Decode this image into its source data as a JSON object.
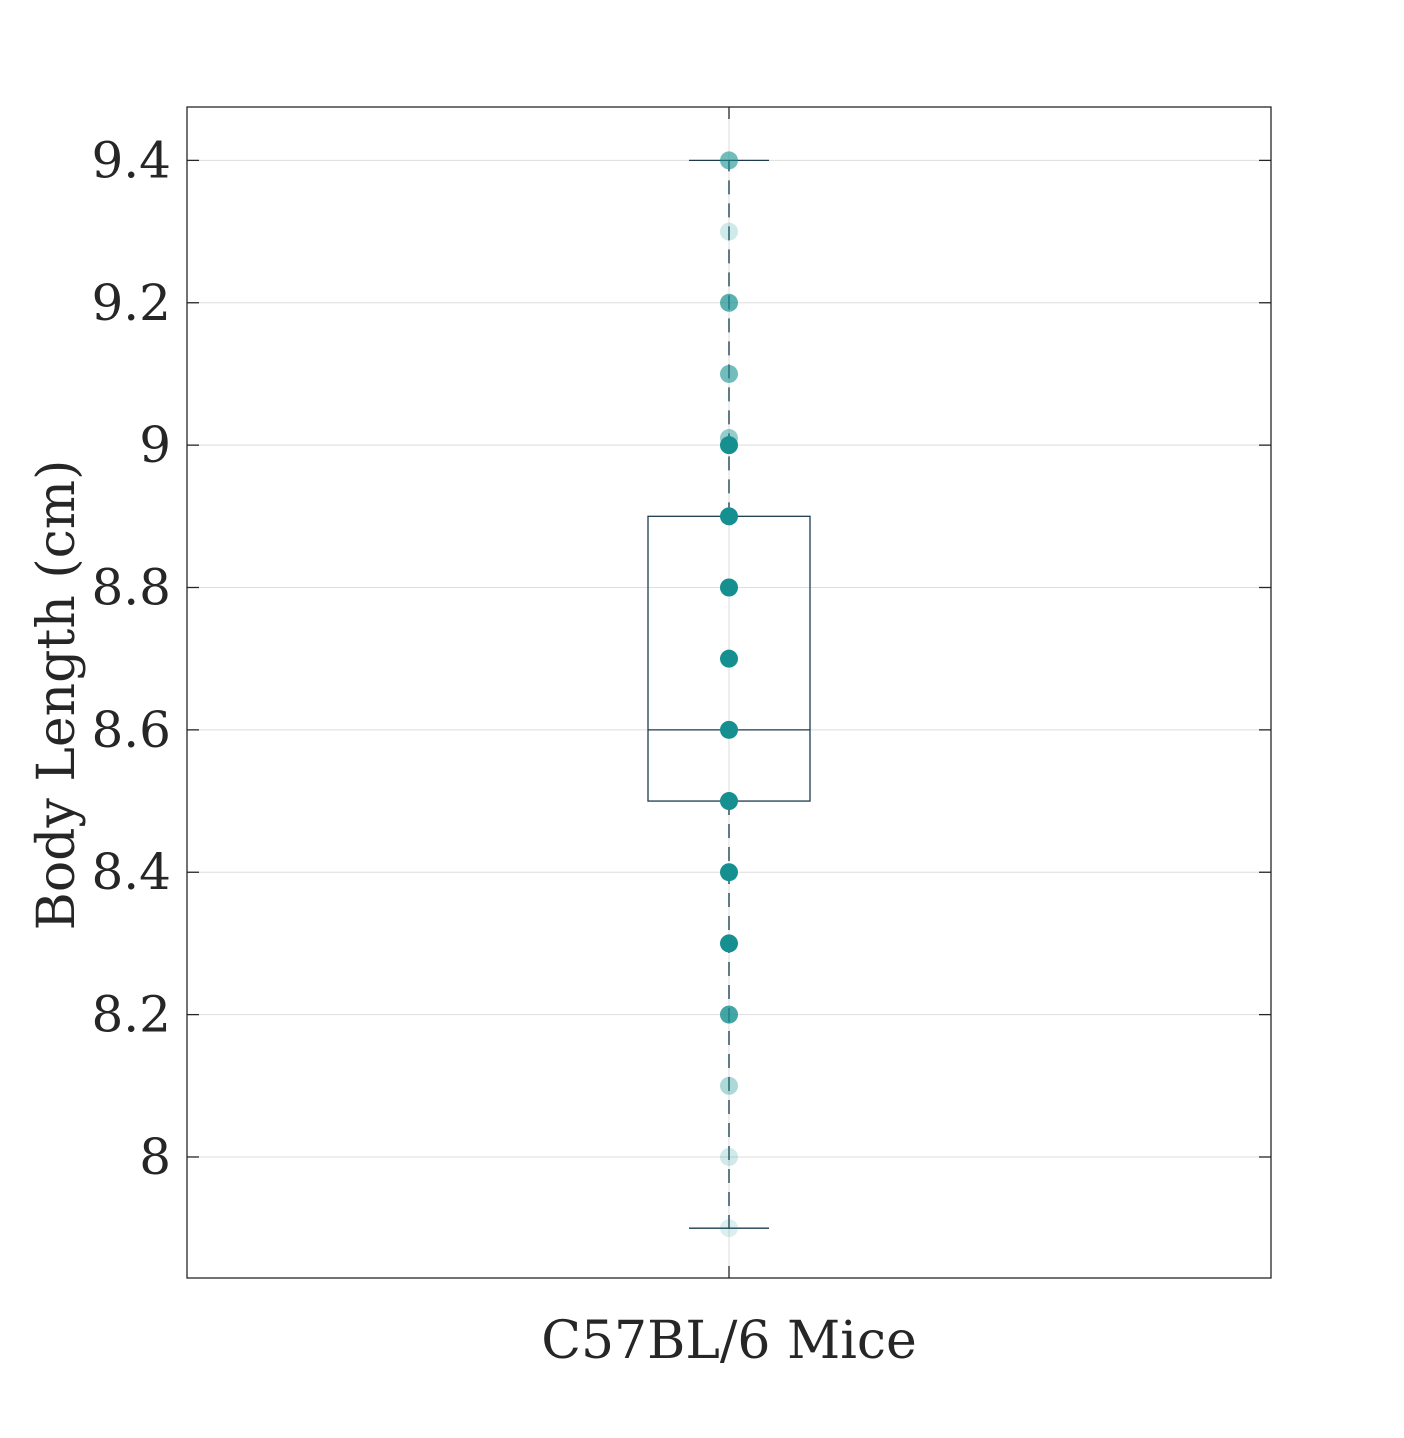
{
  "chart_data": {
    "type": "box",
    "categories": [
      "C57BL/6 Mice"
    ],
    "xlabel": "",
    "ylabel": "Body Length (cm)",
    "ylim": [
      7.83,
      9.475
    ],
    "yticks": [
      8,
      8.2,
      8.4,
      8.6,
      8.8,
      9,
      9.2,
      9.4
    ],
    "ytick_labels": [
      "8",
      "8.2",
      "8.4",
      "8.6",
      "8.8",
      "9",
      "9.2",
      "9.4"
    ],
    "grid": true,
    "box": {
      "min": 7.9,
      "q1": 8.5,
      "median": 8.6,
      "q3": 8.9,
      "max": 9.4
    },
    "points": [
      {
        "y": 9.4,
        "opacity": 0.6
      },
      {
        "y": 9.3,
        "opacity": 0.2
      },
      {
        "y": 9.2,
        "opacity": 0.7
      },
      {
        "y": 9.1,
        "opacity": 0.6
      },
      {
        "y": 9.01,
        "opacity": 0.45
      },
      {
        "y": 9.0,
        "opacity": 1.0
      },
      {
        "y": 8.9,
        "opacity": 1.0
      },
      {
        "y": 8.8,
        "opacity": 1.0
      },
      {
        "y": 8.7,
        "opacity": 1.0
      },
      {
        "y": 8.6,
        "opacity": 1.0
      },
      {
        "y": 8.5,
        "opacity": 1.0
      },
      {
        "y": 8.4,
        "opacity": 1.0
      },
      {
        "y": 8.3,
        "opacity": 1.0
      },
      {
        "y": 8.2,
        "opacity": 0.8
      },
      {
        "y": 8.1,
        "opacity": 0.35
      },
      {
        "y": 8.0,
        "opacity": 0.2
      },
      {
        "y": 7.9,
        "opacity": 0.15
      }
    ],
    "colors": {
      "point": "#158f8f",
      "box": "#1d3b4f",
      "whisker": "#2f4f5f",
      "grid": "#dedede",
      "axes": "#262626"
    }
  }
}
